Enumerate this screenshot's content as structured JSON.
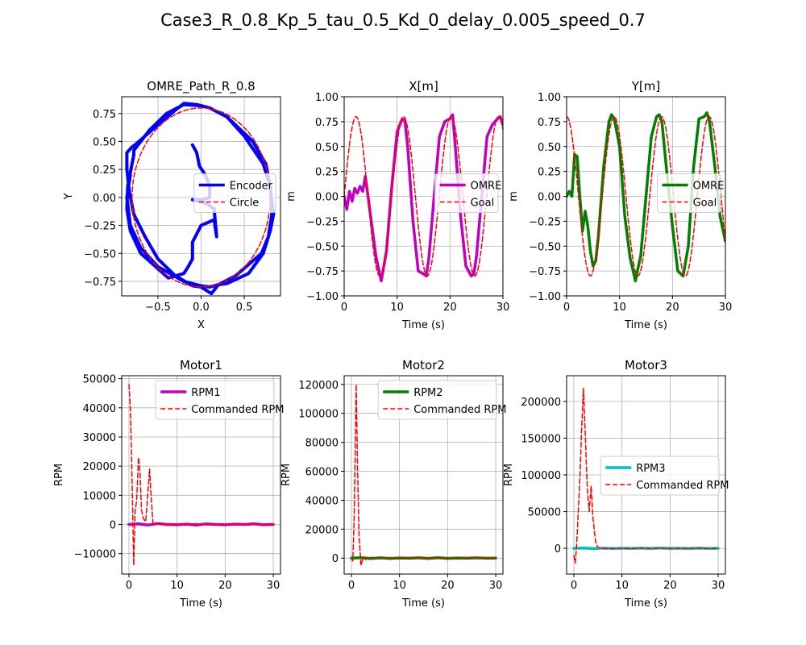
{
  "figure": {
    "suptitle": "Case3_R_0.8_Kp_5_tau_0.5_Kd_0_delay_0.005_speed_0.7"
  },
  "colors": {
    "encoder": "#0000ff",
    "omre_x": "#bf00bf",
    "omre_y": "#008000",
    "rpm1": "#bf00bf",
    "rpm2": "#008000",
    "rpm3": "#00bfbf",
    "commanded": "#ff0000",
    "grid": "#b0b0b0"
  },
  "chart_data": [
    {
      "id": "path",
      "type": "line",
      "title": "OMRE_Path_R_0.8",
      "xlabel": "X",
      "ylabel": "Y",
      "xlim": [
        -0.92,
        0.92
      ],
      "ylim": [
        -0.88,
        0.9
      ],
      "xticks": [
        -0.5,
        0.0,
        0.5
      ],
      "yticks": [
        -0.75,
        -0.5,
        -0.25,
        0.0,
        0.25,
        0.5,
        0.75
      ],
      "grid": true,
      "legend_position": "center right",
      "series": [
        {
          "name": "Encoder",
          "color": "#0000ff",
          "style": "solid",
          "width": 4,
          "x": [
            -0.1,
            -0.05,
            -0.02,
            0.05,
            0.1,
            0.1,
            0.0,
            -0.1,
            0.05,
            0.15,
            0.18,
            0.15,
            0.0,
            -0.1,
            -0.1,
            -0.15,
            -0.2,
            -0.38,
            -0.7,
            -0.82,
            -0.86,
            -0.85,
            -0.8,
            -0.78,
            -0.78,
            -0.6,
            -0.4,
            -0.2,
            0.0,
            0.1,
            0.3,
            0.6,
            0.75,
            0.8,
            0.82,
            0.78,
            0.7,
            0.4,
            0.2,
            0.12,
            0.0,
            -0.1,
            -0.3,
            -0.5,
            -0.65,
            -0.78,
            -0.83,
            -0.86,
            -0.86,
            -0.8,
            -0.75,
            -0.5,
            -0.3,
            -0.2,
            -0.05,
            0.1,
            0.3,
            0.5,
            0.72,
            0.8,
            0.82,
            0.84,
            0.8,
            0.72,
            0.55,
            0.3,
            0.2,
            0.1,
            0.0,
            -0.2,
            -0.5,
            -0.7,
            -0.82,
            -0.86,
            -0.82
          ],
          "y": [
            0.47,
            0.4,
            0.28,
            0.2,
            0.1,
            0.0,
            -0.02,
            -0.02,
            -0.05,
            -0.1,
            -0.35,
            -0.2,
            -0.25,
            -0.4,
            -0.55,
            -0.62,
            -0.68,
            -0.72,
            -0.5,
            -0.3,
            -0.1,
            0.1,
            0.3,
            0.38,
            0.42,
            0.6,
            0.75,
            0.83,
            0.82,
            0.8,
            0.72,
            0.5,
            0.3,
            0.1,
            -0.15,
            -0.35,
            -0.5,
            -0.7,
            -0.78,
            -0.86,
            -0.8,
            -0.79,
            -0.7,
            -0.55,
            -0.35,
            -0.15,
            0.05,
            0.25,
            0.4,
            0.45,
            0.48,
            0.65,
            0.78,
            0.84,
            0.83,
            0.8,
            0.72,
            0.55,
            0.3,
            0.1,
            -0.05,
            -0.15,
            -0.3,
            -0.5,
            -0.68,
            -0.77,
            -0.78,
            -0.8,
            -0.79,
            -0.75,
            -0.62,
            -0.45,
            -0.25,
            0.0,
            0.2
          ]
        },
        {
          "name": "Circle",
          "color": "#ff0000",
          "style": "dashed",
          "width": 1.5,
          "param": "circle",
          "r": 0.8
        }
      ]
    },
    {
      "id": "xm",
      "type": "line",
      "title": "X[m]",
      "xlabel": "Time (s)",
      "ylabel": "m",
      "xlim": [
        0,
        30
      ],
      "ylim": [
        -1.0,
        1.0
      ],
      "xticks": [
        0,
        10,
        20,
        30
      ],
      "yticks": [
        -1.0,
        -0.75,
        -0.5,
        -0.25,
        0.0,
        0.25,
        0.5,
        0.75,
        1.0
      ],
      "grid": true,
      "legend_position": "center right",
      "series": [
        {
          "name": "OMRE",
          "color": "#bf00bf",
          "style": "solid",
          "width": 3.5,
          "x": [
            0,
            0.5,
            1,
            1.5,
            2,
            2.5,
            3,
            3.5,
            4,
            4.5,
            5,
            6,
            7,
            8,
            9,
            10,
            11,
            11.5,
            12,
            13,
            14,
            15,
            15.5,
            16,
            17,
            18,
            19,
            20,
            20.5,
            21,
            22,
            23,
            24,
            24.5,
            25,
            26,
            27,
            28,
            29,
            29.5,
            30
          ],
          "y": [
            0.0,
            -0.13,
            0.05,
            -0.05,
            0.08,
            0.03,
            0.1,
            0.05,
            0.2,
            0.0,
            -0.2,
            -0.6,
            -0.85,
            -0.55,
            0.1,
            0.65,
            0.78,
            0.75,
            0.5,
            -0.25,
            -0.75,
            -0.78,
            -0.8,
            -0.62,
            0.0,
            0.6,
            0.75,
            0.78,
            0.82,
            0.5,
            -0.2,
            -0.7,
            -0.8,
            -0.78,
            -0.6,
            0.0,
            0.6,
            0.72,
            0.78,
            0.8,
            0.72
          ]
        },
        {
          "name": "Goal",
          "color": "#ff0000",
          "style": "dashed",
          "width": 1.5,
          "param": "cos",
          "amp": 0.8,
          "omega": 0.7,
          "phase": -1.5708
        }
      ]
    },
    {
      "id": "ym",
      "type": "line",
      "title": "Y[m]",
      "xlabel": "Time (s)",
      "ylabel": "m",
      "xlim": [
        0,
        30
      ],
      "ylim": [
        -1.0,
        1.0
      ],
      "xticks": [
        0,
        10,
        20,
        30
      ],
      "yticks": [
        -1.0,
        -0.75,
        -0.5,
        -0.25,
        0.0,
        0.25,
        0.5,
        0.75,
        1.0
      ],
      "grid": true,
      "legend_position": "center right",
      "series": [
        {
          "name": "OMRE",
          "color": "#008000",
          "style": "solid",
          "width": 3.5,
          "x": [
            0,
            0.5,
            1,
            1.5,
            2,
            2.5,
            3,
            3.5,
            4,
            4.5,
            5,
            5.5,
            6,
            7,
            8,
            8.5,
            9,
            10,
            11,
            12,
            13,
            13.5,
            14,
            15,
            16,
            17,
            17.5,
            18,
            19,
            20,
            21,
            22,
            23,
            24,
            25,
            26,
            26.5,
            27,
            28,
            29,
            30
          ],
          "y": [
            0.0,
            0.05,
            0.0,
            0.42,
            0.4,
            0.0,
            -0.35,
            -0.15,
            -0.3,
            -0.55,
            -0.7,
            -0.65,
            -0.4,
            0.3,
            0.75,
            0.82,
            0.78,
            0.5,
            -0.2,
            -0.62,
            -0.85,
            -0.72,
            -0.6,
            0.0,
            0.6,
            0.8,
            0.82,
            0.75,
            0.2,
            -0.3,
            -0.75,
            -0.8,
            -0.5,
            0.3,
            0.78,
            0.8,
            0.84,
            0.75,
            0.3,
            -0.2,
            -0.45
          ]
        },
        {
          "name": "Goal",
          "color": "#ff0000",
          "style": "dashed",
          "width": 1.5,
          "param": "cos",
          "amp": 0.8,
          "omega": 0.7,
          "phase": 0
        }
      ]
    },
    {
      "id": "motor1",
      "type": "line",
      "title": "Motor1",
      "xlabel": "Time (s)",
      "ylabel": "RPM",
      "xlim": [
        -1.5,
        31.5
      ],
      "ylim": [
        -17000,
        51000
      ],
      "xticks": [
        0,
        10,
        20,
        30
      ],
      "yticks": [
        -10000,
        0,
        10000,
        20000,
        30000,
        40000,
        50000
      ],
      "grid": true,
      "legend_position": "upper right",
      "series": [
        {
          "name": "RPM1",
          "color": "#bf00bf",
          "style": "solid",
          "width": 3.5,
          "x": [
            0,
            2,
            4,
            6,
            8,
            10,
            12,
            14,
            16,
            18,
            20,
            22,
            24,
            26,
            28,
            30
          ],
          "y": [
            0,
            200,
            -200,
            300,
            0,
            -100,
            100,
            -200,
            200,
            0,
            -100,
            100,
            0,
            200,
            -100,
            0
          ]
        },
        {
          "name": "Commanded RPM",
          "color": "#ff0000",
          "style": "dashed",
          "width": 1.5,
          "x": [
            0,
            0.3,
            0.6,
            1.0,
            1.3,
            1.6,
            2.0,
            2.3,
            2.6,
            3.0,
            3.5,
            4.0,
            4.3,
            4.6,
            5.0,
            5.5,
            6,
            8,
            10,
            12,
            14,
            16,
            18,
            20,
            22,
            24,
            26,
            28,
            30
          ],
          "y": [
            48000,
            40000,
            20000,
            -14000,
            5000,
            8000,
            23000,
            18000,
            5000,
            2000,
            1000,
            12000,
            19000,
            10000,
            500,
            0,
            300,
            -300,
            200,
            -200,
            300,
            -200,
            200,
            -300,
            200,
            -200,
            300,
            -200,
            0
          ]
        }
      ]
    },
    {
      "id": "motor2",
      "type": "line",
      "title": "Motor2",
      "xlabel": "Time (s)",
      "ylabel": "RPM",
      "xlim": [
        -1.5,
        31.5
      ],
      "ylim": [
        -11000,
        126000
      ],
      "xticks": [
        0,
        10,
        20,
        30
      ],
      "yticks": [
        0,
        20000,
        40000,
        60000,
        80000,
        100000,
        120000
      ],
      "grid": true,
      "legend_position": "upper right",
      "series": [
        {
          "name": "RPM2",
          "color": "#008000",
          "style": "solid",
          "width": 3.5,
          "x": [
            0,
            2,
            4,
            6,
            8,
            10,
            12,
            14,
            16,
            18,
            20,
            22,
            24,
            26,
            28,
            30
          ],
          "y": [
            0,
            300,
            -300,
            200,
            -200,
            100,
            -100,
            200,
            -200,
            300,
            -200,
            100,
            -100,
            200,
            -100,
            0
          ]
        },
        {
          "name": "Commanded RPM",
          "color": "#ff0000",
          "style": "dashed",
          "width": 1.5,
          "x": [
            0,
            0.3,
            0.6,
            1.0,
            1.3,
            1.6,
            2.0,
            2.5,
            3.0,
            4,
            6,
            8,
            10,
            12,
            14,
            16,
            18,
            20,
            22,
            24,
            26,
            28,
            30
          ],
          "y": [
            0,
            -2000,
            30000,
            120000,
            60000,
            15000,
            -5000,
            1000,
            -1000,
            500,
            -300,
            200,
            -200,
            300,
            -200,
            200,
            -300,
            200,
            -200,
            300,
            -200,
            200,
            0
          ]
        }
      ]
    },
    {
      "id": "motor3",
      "type": "line",
      "title": "Motor3",
      "xlabel": "Time (s)",
      "ylabel": "RPM",
      "xlim": [
        -1.5,
        31.5
      ],
      "ylim": [
        -35000,
        235000
      ],
      "xticks": [
        0,
        10,
        20,
        30
      ],
      "yticks": [
        0,
        50000,
        100000,
        150000,
        200000
      ],
      "grid": true,
      "legend_position": "center right",
      "series": [
        {
          "name": "RPM3",
          "color": "#00bfbf",
          "style": "solid",
          "width": 3.5,
          "x": [
            0,
            2,
            4,
            6,
            8,
            10,
            12,
            14,
            16,
            18,
            20,
            22,
            24,
            26,
            28,
            30
          ],
          "y": [
            0,
            300,
            -300,
            200,
            -200,
            100,
            -100,
            200,
            -200,
            300,
            -200,
            100,
            -100,
            200,
            -100,
            0
          ]
        },
        {
          "name": "Commanded RPM",
          "color": "#ff0000",
          "style": "dashed",
          "width": 1.5,
          "x": [
            0,
            0.3,
            0.6,
            1.0,
            1.3,
            1.6,
            2.0,
            2.4,
            2.8,
            3.2,
            3.6,
            4.0,
            4.5,
            5.0,
            6,
            8,
            10,
            12,
            14,
            16,
            18,
            20,
            22,
            24,
            26,
            28,
            30
          ],
          "y": [
            -10000,
            -20000,
            5000,
            60000,
            100000,
            160000,
            218000,
            150000,
            80000,
            50000,
            85000,
            40000,
            10000,
            1000,
            0,
            -300,
            200,
            -200,
            300,
            -200,
            200,
            -300,
            200,
            -200,
            300,
            -200,
            0
          ]
        }
      ]
    }
  ]
}
